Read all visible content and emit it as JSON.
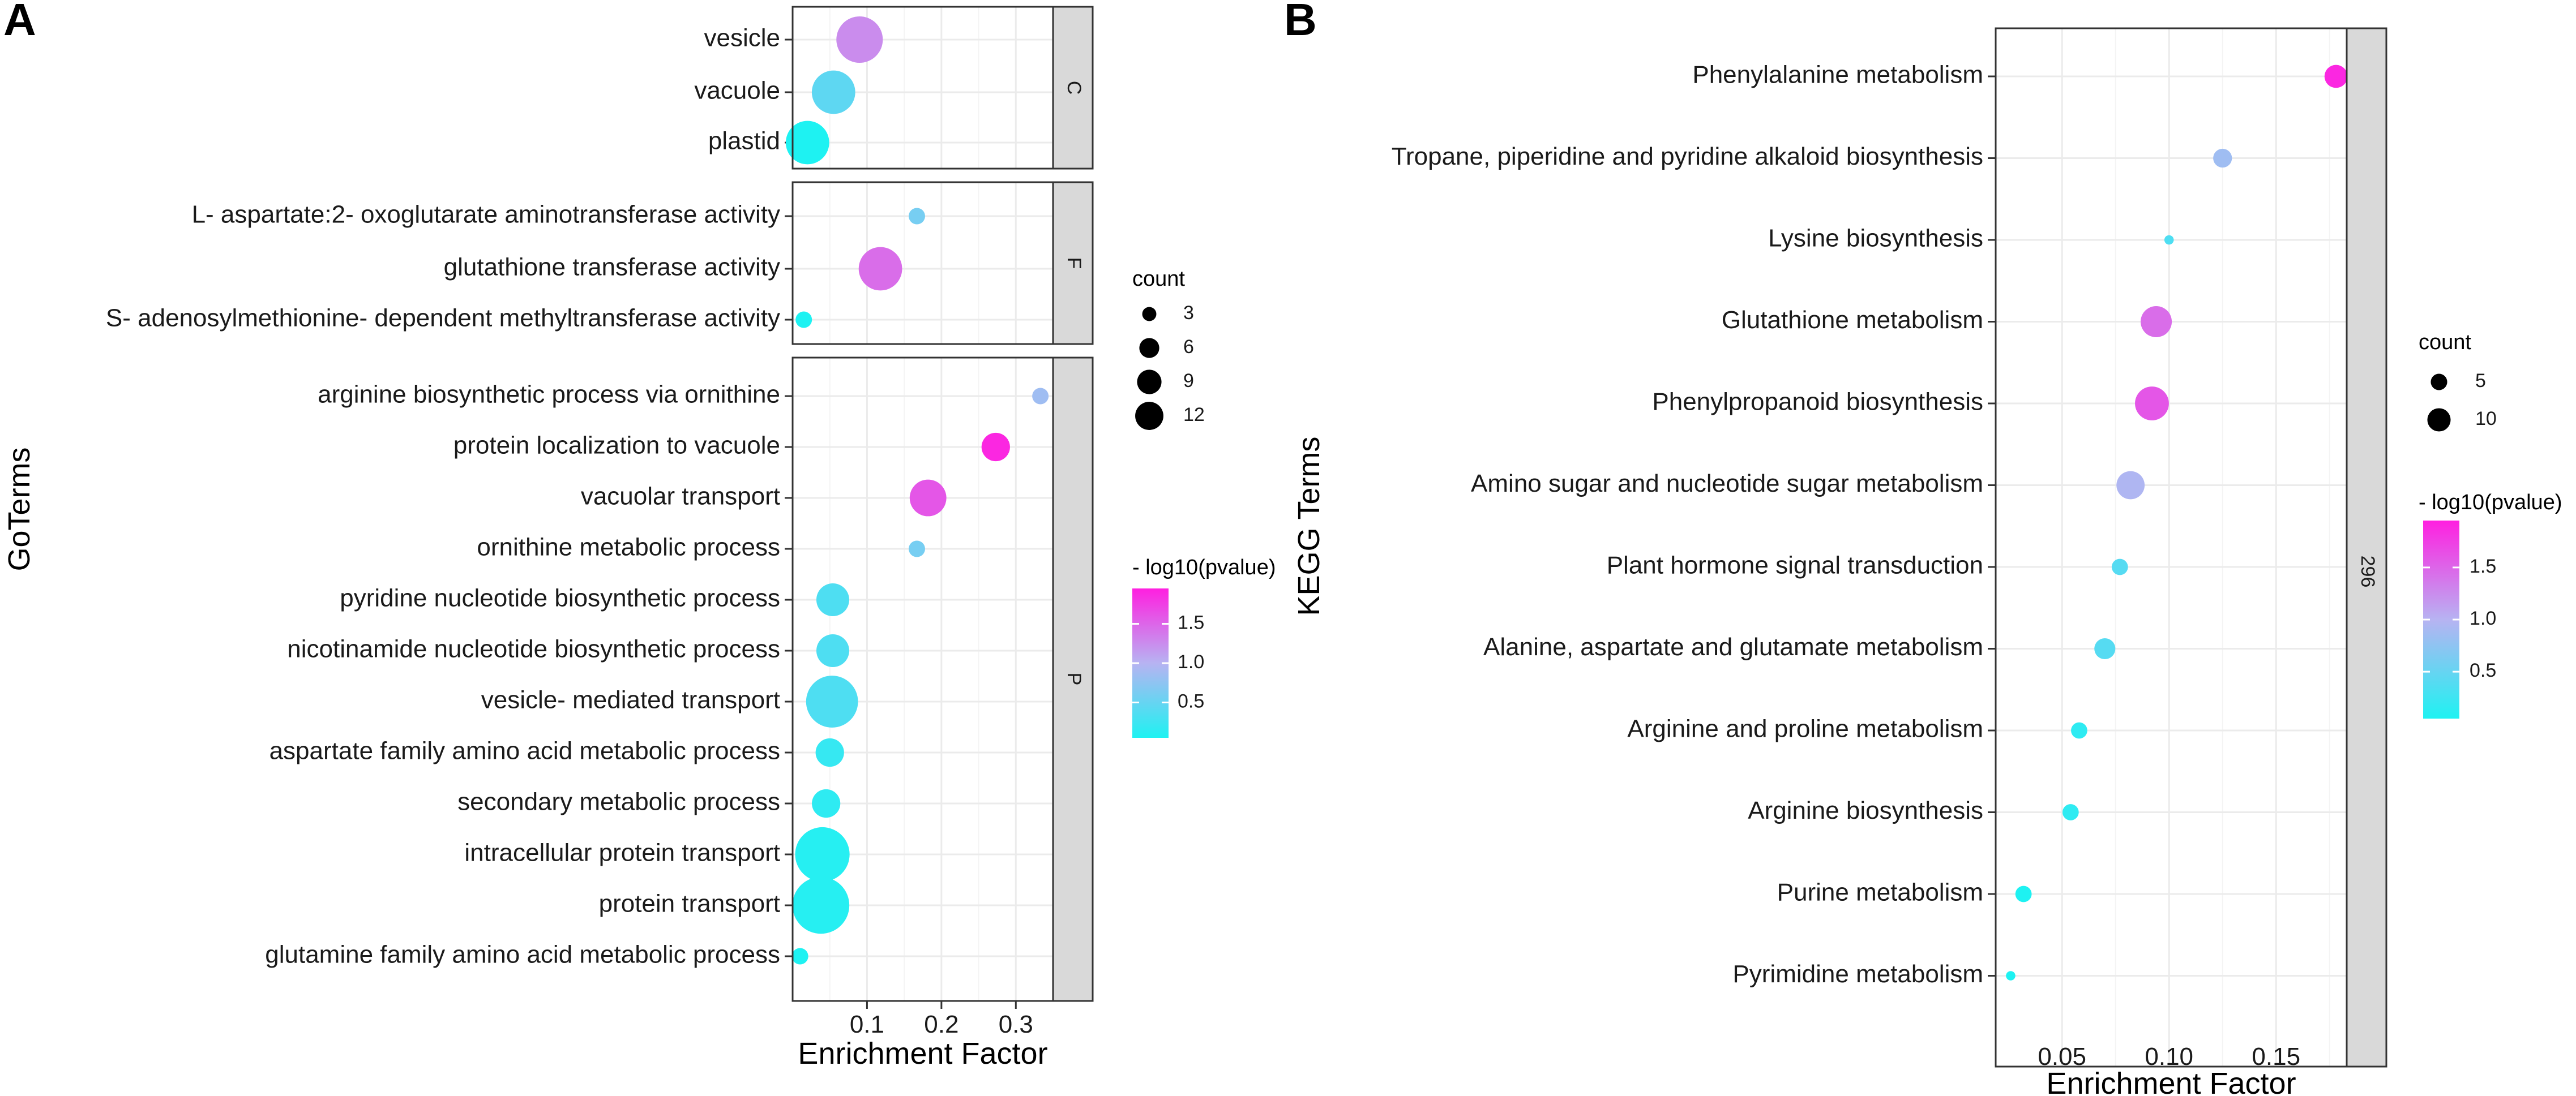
{
  "colors": {
    "low": "#1ef2f2",
    "mid": "#b7b3f2",
    "high": "#ff1fe0"
  },
  "chart_data": [
    {
      "type": "scatter",
      "panel_letter": "A",
      "xlabel": "Enrichment Factor",
      "ylabel": "GoTerms",
      "xlim": [
        0.0,
        0.35
      ],
      "xticks": [
        0.1,
        0.2,
        0.3
      ],
      "xtick_labels": [
        "0.1",
        "0.2",
        "0.3"
      ],
      "facets": [
        {
          "strip": "C",
          "points": [
            {
              "term": "vesicle",
              "x": 0.09,
              "count": 8,
              "neglog10p": 1.25
            },
            {
              "term": "vacuole",
              "x": 0.055,
              "count": 7,
              "neglog10p": 0.45
            },
            {
              "term": "plastid",
              "x": 0.02,
              "count": 7,
              "neglog10p": 0.05
            }
          ]
        },
        {
          "strip": "F",
          "points": [
            {
              "term": "L- aspartate:2- oxoglutarate aminotransferase activity",
              "x": 0.167,
              "count": 1,
              "neglog10p": 0.6
            },
            {
              "term": "glutathione transferase activity",
              "x": 0.118,
              "count": 7,
              "neglog10p": 1.45
            },
            {
              "term": "S- adenosylmethionine- dependent methyltransferase activity",
              "x": 0.015,
              "count": 1,
              "neglog10p": 0.05
            }
          ]
        },
        {
          "strip": "P",
          "points": [
            {
              "term": "arginine biosynthetic process via ornithine",
              "x": 0.333,
              "count": 1,
              "neglog10p": 0.85
            },
            {
              "term": "protein localization to vacuole",
              "x": 0.273,
              "count": 3,
              "neglog10p": 1.9
            },
            {
              "term": "vacuolar transport",
              "x": 0.182,
              "count": 5,
              "neglog10p": 1.6
            },
            {
              "term": "ornithine metabolic process",
              "x": 0.167,
              "count": 1,
              "neglog10p": 0.6
            },
            {
              "term": "pyridine nucleotide biosynthetic process",
              "x": 0.054,
              "count": 4,
              "neglog10p": 0.35
            },
            {
              "term": "nicotinamide nucleotide biosynthetic process",
              "x": 0.054,
              "count": 4,
              "neglog10p": 0.35
            },
            {
              "term": "vesicle- mediated transport",
              "x": 0.053,
              "count": 10,
              "neglog10p": 0.35
            },
            {
              "term": "aspartate family amino acid metabolic process",
              "x": 0.05,
              "count": 3,
              "neglog10p": 0.2
            },
            {
              "term": "secondary metabolic process",
              "x": 0.045,
              "count": 3,
              "neglog10p": 0.15
            },
            {
              "term": "intracellular protein transport",
              "x": 0.04,
              "count": 11,
              "neglog10p": 0.1
            },
            {
              "term": "protein transport",
              "x": 0.038,
              "count": 12,
              "neglog10p": 0.1
            },
            {
              "term": "glutamine family amino acid metabolic process",
              "x": 0.01,
              "count": 1,
              "neglog10p": 0.05
            }
          ]
        }
      ],
      "legend_size": {
        "title": "count",
        "values": [
          3,
          6,
          9,
          12
        ],
        "labels": [
          "3",
          "6",
          "9",
          "12"
        ]
      },
      "legend_color": {
        "title": "- log10(pvalue)",
        "min": 0.05,
        "max": 1.95,
        "ticks": [
          0.5,
          1.0,
          1.5
        ],
        "tick_labels": [
          "0.5",
          "1.0",
          "1.5"
        ]
      }
    },
    {
      "type": "scatter",
      "panel_letter": "B",
      "xlabel": "Enrichment Factor",
      "ylabel": "KEGG Terms",
      "xlim": [
        0.019,
        0.183
      ],
      "xticks": [
        0.05,
        0.1,
        0.15
      ],
      "xtick_labels": [
        "0.05",
        "0.10",
        "0.15"
      ],
      "strip": "296",
      "points": [
        {
          "term": "Phenylalanine metabolism",
          "x": 0.178,
          "count": 6,
          "neglog10p": 1.9
        },
        {
          "term": "Tropane, piperidine and pyridine alkaloid biosynthesis",
          "x": 0.125,
          "count": 4,
          "neglog10p": 0.85
        },
        {
          "term": "Lysine biosynthesis",
          "x": 0.1,
          "count": 1,
          "neglog10p": 0.35
        },
        {
          "term": "Glutathione metabolism",
          "x": 0.094,
          "count": 11,
          "neglog10p": 1.45
        },
        {
          "term": "Phenylpropanoid biosynthesis",
          "x": 0.092,
          "count": 13,
          "neglog10p": 1.6
        },
        {
          "term": "Amino sugar and nucleotide sugar metabolism",
          "x": 0.082,
          "count": 9,
          "neglog10p": 0.95
        },
        {
          "term": "Plant hormone signal transduction",
          "x": 0.077,
          "count": 3,
          "neglog10p": 0.4
        },
        {
          "term": "Alanine, aspartate and glutamate metabolism",
          "x": 0.07,
          "count": 5,
          "neglog10p": 0.4
        },
        {
          "term": "Arginine and proline metabolism",
          "x": 0.058,
          "count": 3,
          "neglog10p": 0.15
        },
        {
          "term": "Arginine biosynthesis",
          "x": 0.054,
          "count": 3,
          "neglog10p": 0.15
        },
        {
          "term": "Purine metabolism",
          "x": 0.032,
          "count": 3,
          "neglog10p": 0.05
        },
        {
          "term": "Pyrimidine metabolism",
          "x": 0.026,
          "count": 1,
          "neglog10p": 0.05
        }
      ],
      "legend_size": {
        "title": "count",
        "values": [
          5,
          10
        ],
        "labels": [
          "5",
          "10"
        ]
      },
      "legend_color": {
        "title": "- log10(pvalue)",
        "min": 0.05,
        "max": 1.95,
        "ticks": [
          0.5,
          1.0,
          1.5
        ],
        "tick_labels": [
          "0.5",
          "1.0",
          "1.5"
        ]
      }
    }
  ]
}
